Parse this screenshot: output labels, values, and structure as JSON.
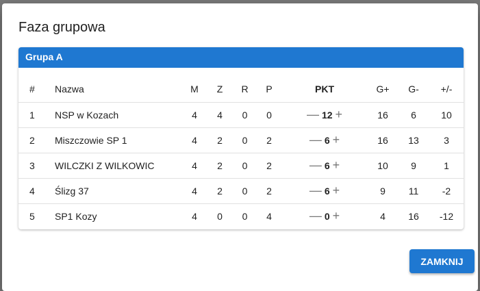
{
  "dialog": {
    "title": "Faza grupowa",
    "close_label": "ZAMKNIJ"
  },
  "group": {
    "name": "Grupa A",
    "headers": [
      "#",
      "Nazwa",
      "M",
      "Z",
      "R",
      "P",
      "PKT",
      "G+",
      "G-",
      "+/-"
    ],
    "rows": [
      {
        "pos": "1",
        "name": "NSP w Kozach",
        "m": "4",
        "z": "4",
        "r": "0",
        "p": "0",
        "pkt": "12",
        "gp": "16",
        "gm": "6",
        "diff": "10"
      },
      {
        "pos": "2",
        "name": "Miszczowie SP 1",
        "m": "4",
        "z": "2",
        "r": "0",
        "p": "2",
        "pkt": "6",
        "gp": "16",
        "gm": "13",
        "diff": "3"
      },
      {
        "pos": "3",
        "name": "WILCZKI Z WILKOWIC",
        "m": "4",
        "z": "2",
        "r": "0",
        "p": "2",
        "pkt": "6",
        "gp": "10",
        "gm": "9",
        "diff": "1"
      },
      {
        "pos": "4",
        "name": "Ślizg 37",
        "m": "4",
        "z": "2",
        "r": "0",
        "p": "2",
        "pkt": "6",
        "gp": "9",
        "gm": "11",
        "diff": "-2"
      },
      {
        "pos": "5",
        "name": "SP1 Kozy",
        "m": "4",
        "z": "0",
        "r": "0",
        "p": "4",
        "pkt": "0",
        "gp": "4",
        "gm": "16",
        "diff": "-12"
      }
    ],
    "minus_symbol": "—",
    "plus_symbol": "+"
  },
  "colors": {
    "accent": "#1f78d1"
  }
}
